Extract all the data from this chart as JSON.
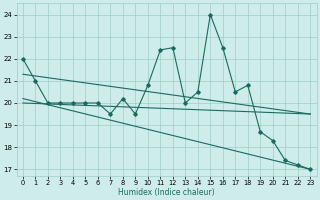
{
  "xlabel": "Humidex (Indice chaleur)",
  "xlim": [
    -0.5,
    23.5
  ],
  "ylim": [
    16.7,
    24.5
  ],
  "yticks": [
    17,
    18,
    19,
    20,
    21,
    22,
    23,
    24
  ],
  "xticks": [
    0,
    1,
    2,
    3,
    4,
    5,
    6,
    7,
    8,
    9,
    10,
    11,
    12,
    13,
    14,
    15,
    16,
    17,
    18,
    19,
    20,
    21,
    22,
    23
  ],
  "bg_color": "#cdecea",
  "grid_color": "#a0ccc8",
  "line_color": "#1a6b5e",
  "series1_x": [
    0,
    1,
    2,
    3,
    4,
    5,
    6,
    7,
    8,
    9,
    10,
    11,
    12,
    13,
    14,
    15,
    16,
    17,
    18,
    19,
    20,
    21,
    22,
    23
  ],
  "series1_y": [
    22,
    21,
    20,
    20,
    20,
    20,
    20,
    19.5,
    20.2,
    19.5,
    20.8,
    22.4,
    22.5,
    20,
    20.5,
    24,
    22.5,
    20.5,
    20.8,
    18.7,
    18.3,
    17.4,
    17.2,
    17.0
  ],
  "trend1_x": [
    0,
    23
  ],
  "trend1_y": [
    21.3,
    19.5
  ],
  "trend2_x": [
    0,
    23
  ],
  "trend2_y": [
    20.2,
    17.0
  ],
  "trend3_x": [
    0,
    23
  ],
  "trend3_y": [
    20.0,
    19.5
  ]
}
